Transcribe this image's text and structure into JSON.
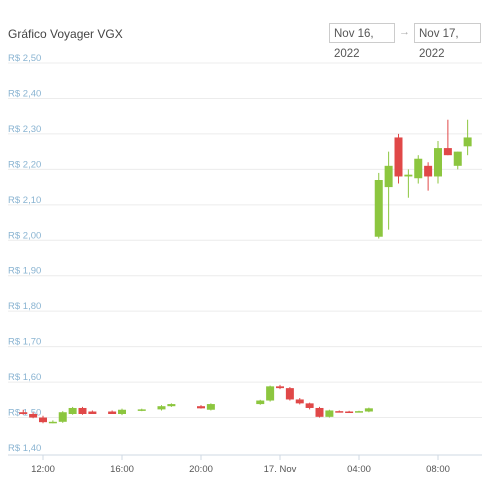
{
  "header": {
    "title": "Gráfico Voyager VGX",
    "date_from": "Nov 16, 2022",
    "date_arrow": "→",
    "date_to": "Nov 17, 2022"
  },
  "colors": {
    "up": "#8cc63f",
    "down": "#e04848",
    "grid": "#ececec",
    "ytick": "#8ab4d2"
  },
  "chart_data": {
    "type": "candlestick",
    "title": "Gráfico Voyager VGX",
    "ylim": [
      1.4,
      2.5
    ],
    "yticks": [
      {
        "value": 2.5,
        "label": "R$ 2,50"
      },
      {
        "value": 2.4,
        "label": "R$ 2,40"
      },
      {
        "value": 2.3,
        "label": "R$ 2,30"
      },
      {
        "value": 2.2,
        "label": "R$ 2,20"
      },
      {
        "value": 2.1,
        "label": "R$ 2,10"
      },
      {
        "value": 2.0,
        "label": "R$ 2,00"
      },
      {
        "value": 1.9,
        "label": "R$ 1,90"
      },
      {
        "value": 1.8,
        "label": "R$ 1,80"
      },
      {
        "value": 1.7,
        "label": "R$ 1,70"
      },
      {
        "value": 1.6,
        "label": "R$ 1,60"
      },
      {
        "value": 1.5,
        "label": "R$ 1,50"
      },
      {
        "value": 1.4,
        "label": "R$ 1,40"
      }
    ],
    "xlim_hours": [
      10.75,
      34.25
    ],
    "xticks": [
      {
        "hour": 12,
        "label": "12:00"
      },
      {
        "hour": 16,
        "label": "16:00"
      },
      {
        "hour": 20,
        "label": "20:00"
      },
      {
        "hour": 24,
        "label": "17. Nov"
      },
      {
        "hour": 28,
        "label": "04:00"
      },
      {
        "hour": 32,
        "label": "08:00"
      }
    ],
    "candles": [
      {
        "t": 11.0,
        "o": 1.515,
        "h": 1.522,
        "l": 1.508,
        "c": 1.51
      },
      {
        "t": 11.5,
        "o": 1.51,
        "h": 1.515,
        "l": 1.498,
        "c": 1.5
      },
      {
        "t": 12.0,
        "o": 1.5,
        "h": 1.505,
        "l": 1.484,
        "c": 1.487
      },
      {
        "t": 12.5,
        "o": 1.487,
        "h": 1.492,
        "l": 1.484,
        "c": 1.488
      },
      {
        "t": 13.0,
        "o": 1.488,
        "h": 1.518,
        "l": 1.485,
        "c": 1.515
      },
      {
        "t": 13.5,
        "o": 1.51,
        "h": 1.53,
        "l": 1.508,
        "c": 1.527
      },
      {
        "t": 14.0,
        "o": 1.527,
        "h": 1.53,
        "l": 1.508,
        "c": 1.51
      },
      {
        "t": 14.5,
        "o": 1.517,
        "h": 1.52,
        "l": 1.51,
        "c": 1.51
      },
      {
        "t": 15.5,
        "o": 1.517,
        "h": 1.52,
        "l": 1.51,
        "c": 1.51
      },
      {
        "t": 16.0,
        "o": 1.51,
        "h": 1.525,
        "l": 1.507,
        "c": 1.522
      },
      {
        "t": 17.0,
        "o": 1.52,
        "h": 1.525,
        "l": 1.518,
        "c": 1.523
      },
      {
        "t": 18.0,
        "o": 1.523,
        "h": 1.535,
        "l": 1.52,
        "c": 1.532
      },
      {
        "t": 18.5,
        "o": 1.532,
        "h": 1.54,
        "l": 1.53,
        "c": 1.538
      },
      {
        "t": 20.0,
        "o": 1.532,
        "h": 1.535,
        "l": 1.525,
        "c": 1.526
      },
      {
        "t": 20.5,
        "o": 1.522,
        "h": 1.54,
        "l": 1.52,
        "c": 1.538
      },
      {
        "t": 23.0,
        "o": 1.538,
        "h": 1.55,
        "l": 1.536,
        "c": 1.548
      },
      {
        "t": 23.5,
        "o": 1.548,
        "h": 1.59,
        "l": 1.545,
        "c": 1.588
      },
      {
        "t": 24.0,
        "o": 1.588,
        "h": 1.592,
        "l": 1.58,
        "c": 1.583
      },
      {
        "t": 24.5,
        "o": 1.583,
        "h": 1.586,
        "l": 1.548,
        "c": 1.551
      },
      {
        "t": 25.0,
        "o": 1.551,
        "h": 1.555,
        "l": 1.537,
        "c": 1.54
      },
      {
        "t": 25.5,
        "o": 1.54,
        "h": 1.542,
        "l": 1.523,
        "c": 1.527
      },
      {
        "t": 26.0,
        "o": 1.527,
        "h": 1.53,
        "l": 1.5,
        "c": 1.502
      },
      {
        "t": 26.5,
        "o": 1.502,
        "h": 1.522,
        "l": 1.5,
        "c": 1.52
      },
      {
        "t": 27.0,
        "o": 1.518,
        "h": 1.52,
        "l": 1.515,
        "c": 1.516
      },
      {
        "t": 27.5,
        "o": 1.517,
        "h": 1.519,
        "l": 1.515,
        "c": 1.516
      },
      {
        "t": 28.0,
        "o": 1.516,
        "h": 1.519,
        "l": 1.515,
        "c": 1.518
      },
      {
        "t": 28.5,
        "o": 1.517,
        "h": 1.528,
        "l": 1.515,
        "c": 1.526
      },
      {
        "t": 29.0,
        "o": 2.01,
        "h": 2.19,
        "l": 2.005,
        "c": 2.17
      },
      {
        "t": 29.5,
        "o": 2.15,
        "h": 2.25,
        "l": 2.03,
        "c": 2.21
      },
      {
        "t": 30.0,
        "o": 2.29,
        "h": 2.3,
        "l": 2.16,
        "c": 2.18
      },
      {
        "t": 30.5,
        "o": 2.18,
        "h": 2.2,
        "l": 2.12,
        "c": 2.185
      },
      {
        "t": 31.0,
        "o": 2.175,
        "h": 2.24,
        "l": 2.16,
        "c": 2.23
      },
      {
        "t": 31.5,
        "o": 2.21,
        "h": 2.22,
        "l": 2.14,
        "c": 2.18
      },
      {
        "t": 32.0,
        "o": 2.18,
        "h": 2.28,
        "l": 2.16,
        "c": 2.26
      },
      {
        "t": 32.5,
        "o": 2.26,
        "h": 2.34,
        "l": 2.24,
        "c": 2.24
      },
      {
        "t": 33.0,
        "o": 2.21,
        "h": 2.25,
        "l": 2.2,
        "c": 2.25
      },
      {
        "t": 33.5,
        "o": 2.265,
        "h": 2.34,
        "l": 2.24,
        "c": 2.29
      }
    ]
  }
}
